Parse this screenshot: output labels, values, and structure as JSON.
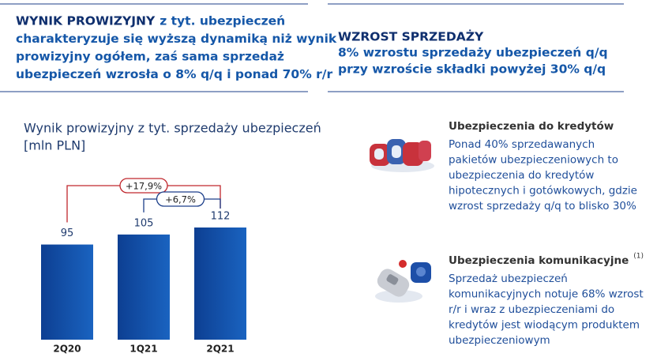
{
  "header_left": {
    "title": "WYNIK PROWIZYJNY",
    "lines": [
      "z tyt. ubezpieczeń",
      "charakteryzuje się wyższą dynamiką niż wynik",
      "prowizyjny ogółem, zaś sama sprzedaż",
      "ubezpieczeń wzrosła o 8% q/q i ponad 70% r/r"
    ]
  },
  "header_right": {
    "title": "WZROST SPRZEDAŻY",
    "lines": [
      "8% wzrostu sprzedaży ubezpieczeń q/q",
      "przy wzroście składki powyżej 30% q/q"
    ]
  },
  "chart_data": {
    "type": "bar",
    "title": "Wynik prowizyjny z tyt. sprzedaży ubezpieczeń",
    "subtitle": "[mln PLN]",
    "categories": [
      "2Q20",
      "1Q21",
      "2Q21"
    ],
    "values": [
      95,
      105,
      112
    ],
    "color": "#0d3f92",
    "annotations": [
      {
        "label": "+17,9%",
        "color": "#c0272d"
      },
      {
        "label": "+6,7%",
        "color": "#1c3f8a"
      }
    ]
  },
  "items": [
    {
      "heading": "Ubezpieczenia do kredytów",
      "lines": [
        "Ponad 40% sprzedawanych",
        "pakietów ubezpieczeniowych to",
        "ubezpieczenia do kredytów",
        "hipotecznych i gotówkowych, gdzie",
        "wzrost sprzedaży q/q to blisko 30%"
      ]
    },
    {
      "heading": "Ubezpieczenia komunikacyjne",
      "note": "(1)",
      "lines": [
        "Sprzedaż ubezpieczeń",
        "komunikacyjnych notuje 68% wzrost",
        "r/r i wraz z ubezpieczeniami do",
        "kredytów jest wiodącym produktem",
        "ubezpieczeniowym"
      ]
    }
  ]
}
